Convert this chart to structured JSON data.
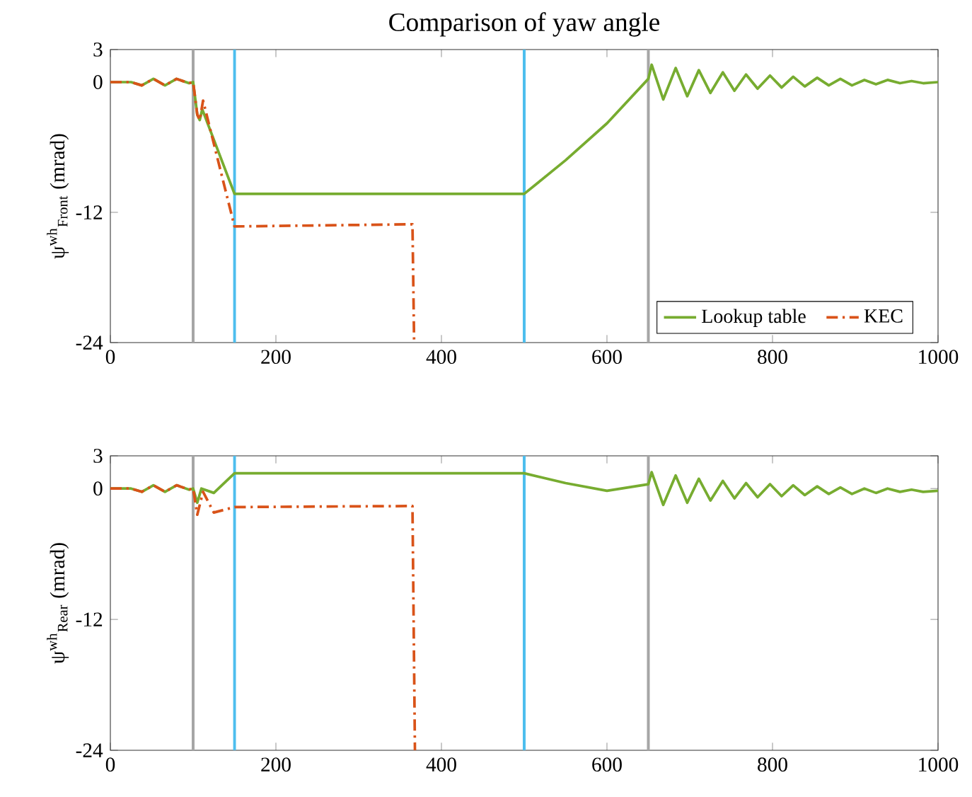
{
  "chart_data": [
    {
      "type": "line",
      "title": "Comparison of yaw angle",
      "ylabel": "ψ$^{wh}$$_{Front}$ (mrad)",
      "xlim": [
        0,
        1000
      ],
      "xticks": [
        0,
        200,
        400,
        600,
        800,
        1000
      ],
      "ylim": [
        -24,
        3
      ],
      "yticks": [
        -24,
        -12,
        0,
        3
      ],
      "legend": "bottom right",
      "grid": false,
      "marker": "none",
      "ref_lines": [
        {
          "axis": "x",
          "value": 100,
          "color": "#a6a6a6"
        },
        {
          "axis": "x",
          "value": 150,
          "color": "#4dbeee"
        },
        {
          "axis": "x",
          "value": 500,
          "color": "#4dbeee"
        },
        {
          "axis": "x",
          "value": 650,
          "color": "#a6a6a6"
        }
      ],
      "series": [
        {
          "name": "Lookup table",
          "color": "#77ac30",
          "line_style": "solid",
          "x": [
            0,
            25,
            38,
            52,
            66,
            80,
            95,
            100,
            105,
            108,
            111,
            150,
            500,
            550,
            600,
            650,
            654,
            668,
            683,
            697,
            711,
            725,
            740,
            754,
            768,
            782,
            797,
            811,
            825,
            839,
            854,
            868,
            882,
            896,
            911,
            925,
            939,
            954,
            968,
            982,
            1000
          ],
          "values": [
            0,
            0,
            -0.3,
            0.3,
            -0.3,
            0.3,
            -0.1,
            0,
            -3,
            -3.5,
            -2.5,
            -10.3,
            -10.3,
            -7.2,
            -3.8,
            0.3,
            1.6,
            -1.6,
            1.3,
            -1.3,
            1.1,
            -1.0,
            0.9,
            -0.8,
            0.7,
            -0.6,
            0.6,
            -0.5,
            0.5,
            -0.4,
            0.4,
            -0.3,
            0.3,
            -0.3,
            0.2,
            -0.2,
            0.2,
            -0.1,
            0.1,
            -0.1,
            0
          ]
        },
        {
          "name": "KEC",
          "color": "#d95319",
          "line_style": "dashdot",
          "x": [
            0,
            25,
            38,
            52,
            66,
            80,
            95,
            100,
            105,
            108,
            112,
            150,
            365,
            367
          ],
          "values": [
            0,
            0,
            -0.3,
            0.3,
            -0.3,
            0.3,
            -0.1,
            0,
            -3,
            -3.5,
            -1.7,
            -13.3,
            -13.1,
            -24
          ]
        }
      ]
    },
    {
      "type": "line",
      "ylabel": "ψ$^{wh}$$_{Rear}$ (mrad)",
      "xlim": [
        0,
        1000
      ],
      "xticks": [
        0,
        200,
        400,
        600,
        800,
        1000
      ],
      "ylim": [
        -24,
        3
      ],
      "yticks": [
        -24,
        -12,
        0,
        3
      ],
      "grid": false,
      "marker": "none",
      "ref_lines": [
        {
          "axis": "x",
          "value": 100,
          "color": "#a6a6a6"
        },
        {
          "axis": "x",
          "value": 150,
          "color": "#4dbeee"
        },
        {
          "axis": "x",
          "value": 500,
          "color": "#4dbeee"
        },
        {
          "axis": "x",
          "value": 650,
          "color": "#a6a6a6"
        }
      ],
      "series": [
        {
          "color": "#77ac30",
          "line_style": "solid",
          "x": [
            0,
            25,
            38,
            52,
            66,
            80,
            95,
            100,
            105,
            110,
            125,
            150,
            500,
            550,
            600,
            650,
            654,
            668,
            683,
            697,
            711,
            725,
            740,
            754,
            768,
            782,
            797,
            811,
            825,
            839,
            854,
            868,
            882,
            896,
            911,
            925,
            939,
            954,
            968,
            982,
            1000
          ],
          "values": [
            0,
            0,
            -0.3,
            0.3,
            -0.3,
            0.3,
            -0.1,
            0,
            -1.3,
            0,
            -0.4,
            1.4,
            1.4,
            0.5,
            -0.2,
            0.4,
            1.5,
            -1.5,
            1.2,
            -1.3,
            0.9,
            -1.1,
            0.7,
            -0.9,
            0.5,
            -0.8,
            0.4,
            -0.7,
            0.3,
            -0.6,
            0.2,
            -0.5,
            0.1,
            -0.5,
            0.0,
            -0.4,
            0.0,
            -0.3,
            -0.1,
            -0.3,
            -0.2
          ]
        },
        {
          "color": "#d95319",
          "line_style": "dashdot",
          "x": [
            0,
            25,
            38,
            52,
            66,
            80,
            95,
            100,
            105,
            112,
            125,
            150,
            365,
            368
          ],
          "values": [
            0,
            0,
            -0.3,
            0.3,
            -0.3,
            0.3,
            -0.1,
            0,
            -2.4,
            -0.3,
            -2.2,
            -1.7,
            -1.6,
            -24
          ]
        }
      ]
    }
  ]
}
